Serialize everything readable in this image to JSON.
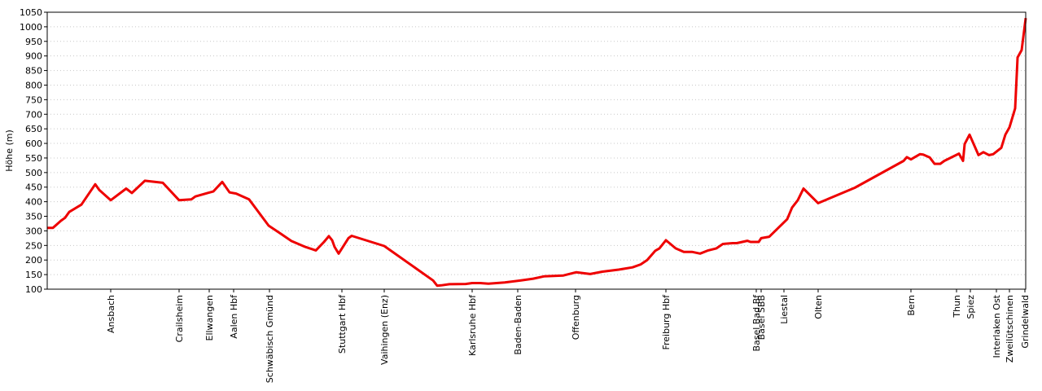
{
  "chart_data": {
    "type": "line",
    "y_label": "Höhe (m)",
    "x": [
      0,
      7,
      17,
      22,
      27,
      42,
      59,
      64,
      78,
      97,
      104,
      120,
      142,
      162,
      177,
      182,
      197,
      204,
      215,
      224,
      232,
      248,
      272,
      287,
      300,
      317,
      330,
      340,
      346,
      350,
      353,
      358,
      370,
      374,
      414,
      474,
      479,
      484,
      494,
      514,
      522,
      532,
      542,
      552,
      562,
      582,
      597,
      610,
      634,
      650,
      667,
      682,
      702,
      719,
      729,
      737,
      747,
      752,
      760,
      772,
      782,
      792,
      802,
      812,
      822,
      830,
      842,
      847,
      860,
      864,
      874,
      877,
      887,
      909,
      915,
      922,
      929,
      947,
      992,
      1052,
      1056,
      1061,
      1067,
      1072,
      1076,
      1084,
      1090,
      1097,
      1102,
      1120,
      1125,
      1127,
      1133,
      1144,
      1150,
      1157,
      1162,
      1172,
      1177,
      1182,
      1189,
      1192,
      1197,
      1202
    ],
    "series": [
      {
        "name": "Höhe",
        "color": "#ee0000",
        "values": [
          310,
          310,
          335,
          345,
          365,
          390,
          460,
          440,
          405,
          445,
          430,
          472,
          465,
          405,
          408,
          418,
          430,
          435,
          468,
          432,
          428,
          408,
          318,
          290,
          265,
          245,
          233,
          262,
          282,
          268,
          245,
          222,
          275,
          283,
          248,
          130,
          112,
          113,
          117,
          118,
          121,
          121,
          119,
          121,
          123,
          130,
          136,
          144,
          147,
          158,
          152,
          160,
          167,
          175,
          185,
          200,
          232,
          240,
          268,
          240,
          228,
          228,
          222,
          233,
          240,
          255,
          258,
          258,
          266,
          262,
          262,
          275,
          280,
          340,
          380,
          405,
          445,
          395,
          448,
          540,
          553,
          545,
          555,
          563,
          562,
          552,
          530,
          530,
          540,
          565,
          540,
          598,
          630,
          560,
          570,
          560,
          563,
          585,
          630,
          655,
          720,
          895,
          920,
          1030
        ]
      }
    ],
    "stations": [
      {
        "name": "Ansbach",
        "x": 78
      },
      {
        "name": "Crailsheim",
        "x": 162
      },
      {
        "name": "Ellwangen",
        "x": 199
      },
      {
        "name": "Aalen Hbf",
        "x": 229
      },
      {
        "name": "Schwäbisch Gmünd",
        "x": 273
      },
      {
        "name": "Stuttgart Hbf",
        "x": 362
      },
      {
        "name": "Vaihingen (Enz)",
        "x": 414
      },
      {
        "name": "Karlsruhe Hbf",
        "x": 522
      },
      {
        "name": "Baden-Baden",
        "x": 578
      },
      {
        "name": "Offenburg",
        "x": 649
      },
      {
        "name": "Freiburg Hbf",
        "x": 760
      },
      {
        "name": "Basel Bad Bf",
        "x": 871
      },
      {
        "name": "Basel SBB",
        "x": 877
      },
      {
        "name": "Liestal",
        "x": 905
      },
      {
        "name": "Olten",
        "x": 947
      },
      {
        "name": "Bern",
        "x": 1061
      },
      {
        "name": "Thun",
        "x": 1117
      },
      {
        "name": "Spiez",
        "x": 1134
      },
      {
        "name": "Interlaken Ost",
        "x": 1166
      },
      {
        "name": "Zweilütschinen",
        "x": 1182
      },
      {
        "name": "Grindelwald",
        "x": 1201
      }
    ],
    "xlim": [
      0,
      1202
    ],
    "ylim": [
      100,
      1050
    ],
    "yticks": [
      100,
      150,
      200,
      250,
      300,
      350,
      400,
      450,
      500,
      550,
      600,
      650,
      700,
      750,
      800,
      850,
      900,
      950,
      1000,
      1050
    ],
    "grid": true
  }
}
